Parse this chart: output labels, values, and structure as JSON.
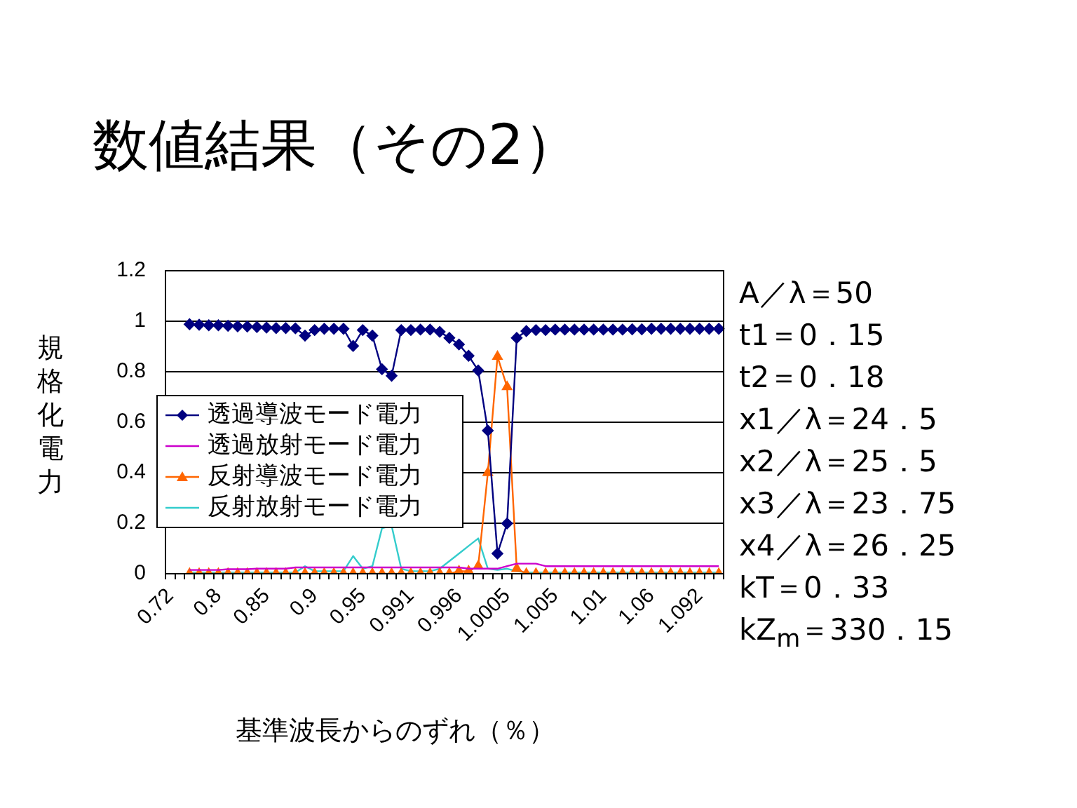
{
  "chart_data": {
    "type": "line",
    "title": "数値結果（その2）",
    "xlabel": "基準波長からのずれ（％）",
    "ylabel": "規格化電力",
    "categories": [
      "0.72",
      null,
      null,
      null,
      null,
      "0.8",
      null,
      null,
      null,
      null,
      "0.85",
      null,
      null,
      null,
      null,
      "0.9",
      null,
      null,
      null,
      null,
      "0.95",
      null,
      null,
      null,
      null,
      "0.991",
      null,
      null,
      null,
      null,
      "0.996",
      null,
      null,
      null,
      null,
      "1.0005",
      null,
      null,
      null,
      null,
      "1.005",
      null,
      null,
      null,
      null,
      "1.01",
      null,
      null,
      null,
      null,
      "1.06",
      null,
      null,
      null,
      null,
      "1.092",
      null,
      null
    ],
    "series": [
      {
        "name": "透過導波モード電力",
        "color": "#000080",
        "marker": "diamond",
        "values": [
          null,
          null,
          0.988,
          0.986,
          0.984,
          0.984,
          0.982,
          0.98,
          0.979,
          0.977,
          0.975,
          0.973,
          0.973,
          0.972,
          0.943,
          0.965,
          0.97,
          0.97,
          0.97,
          0.902,
          0.965,
          0.943,
          0.81,
          0.784,
          0.965,
          0.965,
          0.967,
          0.967,
          0.958,
          0.934,
          0.908,
          0.863,
          0.805,
          0.567,
          0.08,
          0.199,
          0.934,
          0.961,
          0.965,
          0.965,
          0.967,
          0.967,
          0.967,
          0.967,
          0.967,
          0.967,
          0.967,
          0.967,
          0.968,
          0.968,
          0.97,
          0.97,
          0.97,
          0.97,
          0.97,
          0.97,
          0.97,
          0.97
        ]
      },
      {
        "name": "透過放射モード電力",
        "color": "#cc00cc",
        "marker": "none",
        "values": [
          null,
          null,
          0.015,
          0.015,
          0.015,
          0.015,
          0.018,
          0.018,
          0.018,
          0.02,
          0.02,
          0.02,
          0.02,
          0.025,
          0.025,
          0.025,
          0.025,
          0.025,
          0.025,
          0.025,
          0.025,
          0.025,
          0.025,
          0.025,
          0.025,
          0.025,
          0.025,
          0.025,
          0.025,
          0.025,
          0.025,
          0.02,
          0.02,
          0.02,
          0.02,
          0.03,
          0.04,
          0.04,
          0.04,
          0.03,
          0.03,
          0.03,
          0.03,
          0.03,
          0.03,
          0.03,
          0.03,
          0.03,
          0.03,
          0.03,
          0.03,
          0.03,
          0.03,
          0.03,
          0.03,
          0.03,
          0.03,
          0.03
        ]
      },
      {
        "name": "反射導波モード電力",
        "color": "#ff6600",
        "marker": "triangle",
        "values": [
          null,
          null,
          0,
          0,
          0,
          0,
          0,
          0,
          0,
          0,
          0,
          0,
          0,
          0,
          0,
          0,
          0,
          0,
          0,
          0,
          0,
          0,
          0,
          0,
          0,
          0,
          0,
          0,
          0,
          0,
          0.01,
          0.01,
          0.03,
          0.4,
          0.86,
          0.74,
          0.02,
          0,
          0,
          0,
          0,
          0,
          0,
          0,
          0,
          0,
          0,
          0,
          0,
          0,
          0,
          0,
          0,
          0,
          0,
          0,
          0,
          0
        ]
      },
      {
        "name": "反射放射モード電力",
        "color": "#33cccc",
        "marker": "none",
        "values": [
          null,
          null,
          0.005,
          0.005,
          0.005,
          0.005,
          0.005,
          0.005,
          0.005,
          0.005,
          0.005,
          0.005,
          0.005,
          0.005,
          0.03,
          0.01,
          0.01,
          0.01,
          0.01,
          0.07,
          0.02,
          0.03,
          0.18,
          0.19,
          0.02,
          0.01,
          0.01,
          0.01,
          0.02,
          0.05,
          0.08,
          0.11,
          0.14,
          0.02,
          0.015,
          0.02,
          0.01,
          0.005,
          0.005,
          0.005,
          0.005,
          0.005,
          0.005,
          0.005,
          0.005,
          0.005,
          0.005,
          0.005,
          0.005,
          0.005,
          0.005,
          0.005,
          0.005,
          0.005,
          0.005,
          0.005,
          0.005,
          0.005
        ]
      }
    ],
    "ylim": [
      0,
      1.2
    ],
    "yticks": [
      0,
      0.2,
      0.4,
      0.6,
      0.8,
      1,
      1.2
    ],
    "grid": "y",
    "legend": "left",
    "line_style": "solid",
    "annotations": [
      "A／λ＝50",
      "t1＝0．15",
      "t2＝0．18",
      "x1／λ＝24．5",
      "x2／λ＝25．5",
      "x3／λ＝23．75",
      "x4／λ＝26．25",
      "kT＝0．33",
      "kZ$_{m}$＝330．15"
    ]
  }
}
